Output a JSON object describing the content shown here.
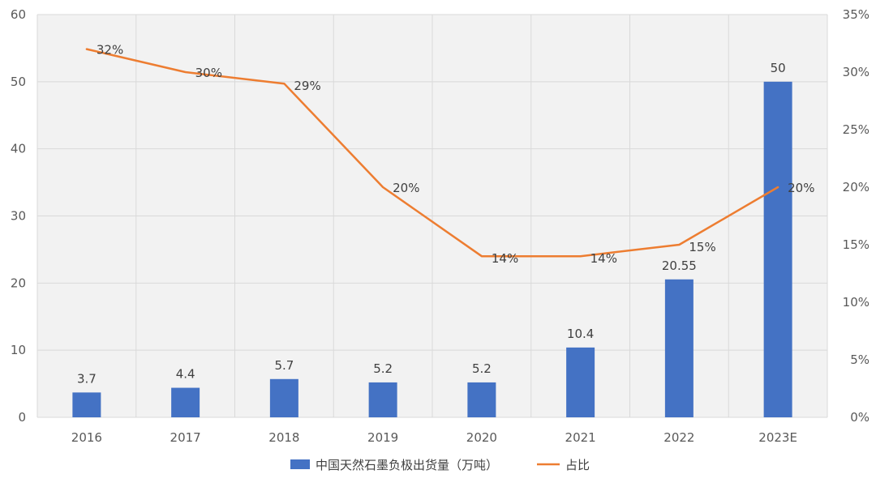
{
  "chart_data": {
    "type": "bar+line",
    "categories": [
      "2016",
      "2017",
      "2018",
      "2019",
      "2020",
      "2021",
      "2022",
      "2023E"
    ],
    "series": [
      {
        "name": "中国天然石墨负极出货量（万吨）",
        "type": "bar",
        "axis": "left",
        "values": [
          3.7,
          4.4,
          5.7,
          5.2,
          5.2,
          10.4,
          20.55,
          50
        ],
        "labels": [
          "3.7",
          "4.4",
          "5.7",
          "5.2",
          "5.2",
          "10.4",
          "20.55",
          "50"
        ],
        "color": "#4472C4"
      },
      {
        "name": "占比",
        "type": "line",
        "axis": "right",
        "values": [
          32,
          30,
          29,
          20,
          14,
          14,
          15,
          20
        ],
        "labels": [
          "32%",
          "30%",
          "29%",
          "20%",
          "14%",
          "14%",
          "15%",
          "20%"
        ],
        "color": "#ED7D31"
      }
    ],
    "y_left": {
      "min": 0,
      "max": 60,
      "ticks": [
        "0",
        "10",
        "20",
        "30",
        "40",
        "50",
        "60"
      ]
    },
    "y_right": {
      "min": 0,
      "max": 35,
      "ticks": [
        "0%",
        "5%",
        "10%",
        "15%",
        "20%",
        "25%",
        "30%",
        "35%"
      ]
    },
    "grid": true,
    "legend_position": "bottom"
  }
}
